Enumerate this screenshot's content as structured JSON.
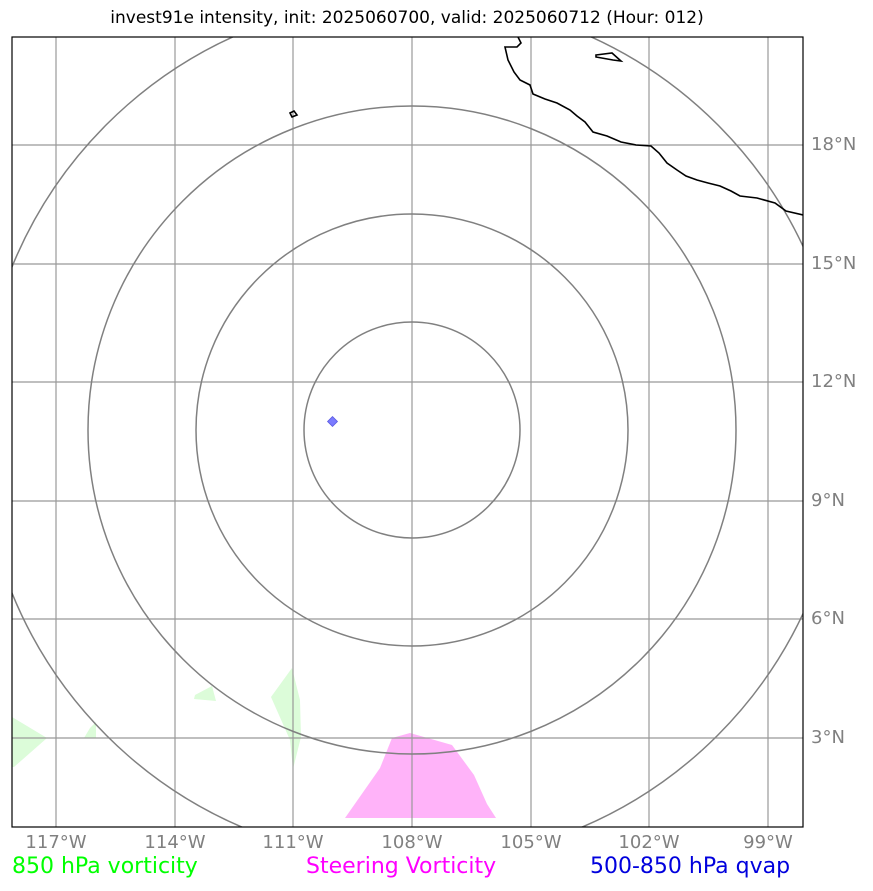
{
  "title": "invest91e intensity, init: 2025060700, valid: 2025060712 (Hour: 012)",
  "map": {
    "lon_labels": [
      "117°W",
      "114°W",
      "111°W",
      "108°W",
      "105°W",
      "102°W",
      "99°W"
    ],
    "lat_labels": [
      "18°N",
      "15°N",
      "12°N",
      "9°N",
      "6°N",
      "3°N"
    ],
    "lon_range": [
      -118.1,
      -98.1
    ],
    "lat_range": [
      1.0,
      20.0
    ],
    "center": {
      "lon": -108.0,
      "lat": 10.8
    },
    "range_rings": 4,
    "storm_marker": {
      "lon": -110.0,
      "lat": 11.0
    }
  },
  "legend": {
    "vort850": "850 hPa vorticity",
    "steering": "Steering Vorticity",
    "qvap": "500-850 hPa qvap"
  },
  "colors": {
    "vort850": "#00ff00",
    "steering": "#ff00ff",
    "qvap": "#0000dd",
    "vort850_fill": "#dcfcd9",
    "steering_fill": "#ffb3f9",
    "gridline": "#999999",
    "ring": "#808080",
    "coast": "#000000",
    "marker": "#7b7bff"
  }
}
